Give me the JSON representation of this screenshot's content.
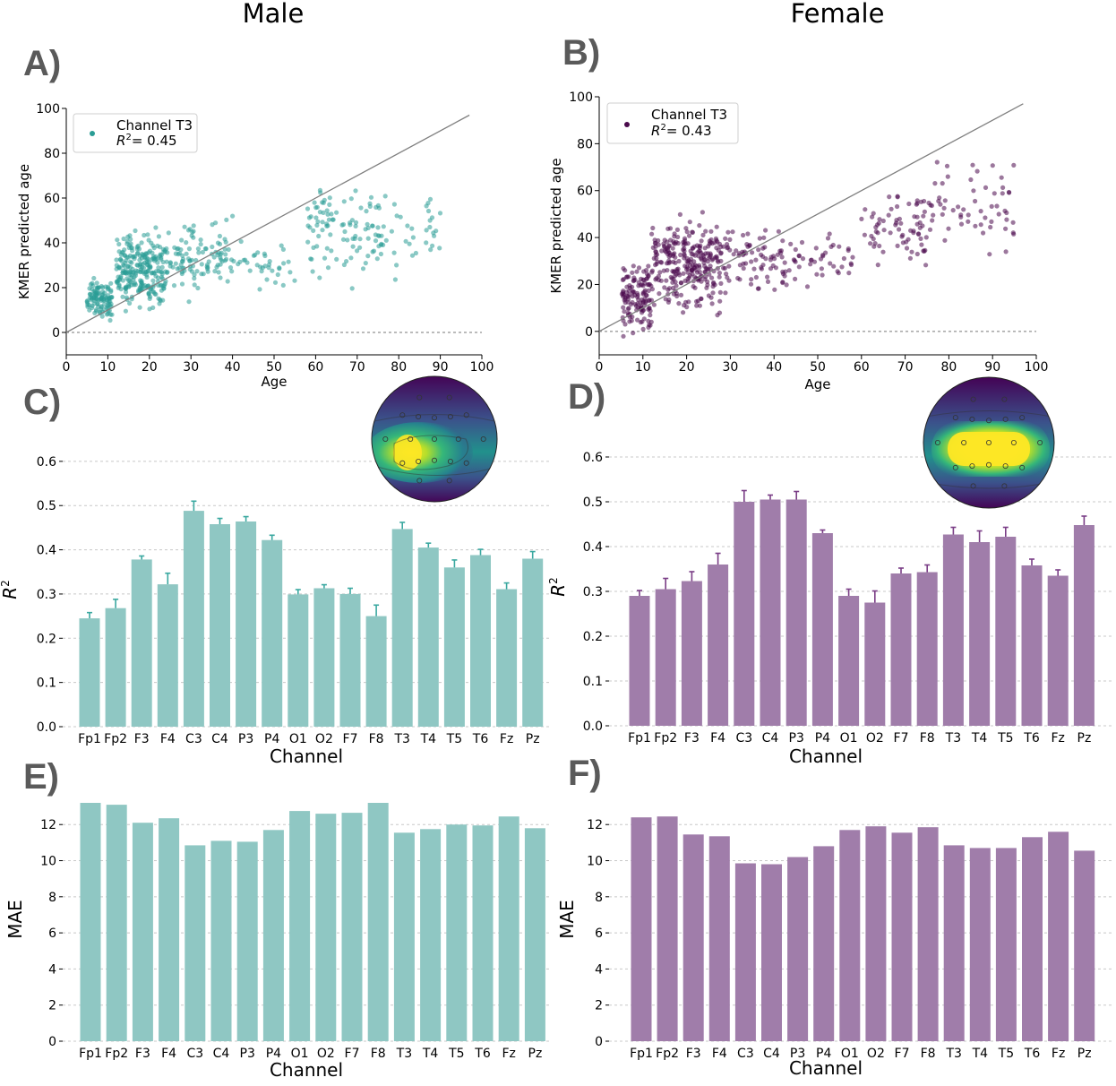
{
  "column_titles": [
    "Male",
    "Female"
  ],
  "colors": {
    "male": "#2a9d95",
    "male_bar": "#8fc7c3",
    "male_err": "#3aa8a0",
    "female": "#4a0a4c",
    "female_bar": "#a07daa",
    "female_err": "#7a3d86",
    "identity": "#808080"
  },
  "chart_data": [
    {
      "panel": "A)",
      "type": "scatter",
      "color": "male",
      "xlabel": "Age",
      "ylabel": "KMER predicted age",
      "xlim": [
        0,
        100
      ],
      "ylim": [
        -10,
        100
      ],
      "xticks": [
        0,
        10,
        20,
        30,
        40,
        50,
        60,
        70,
        80,
        90,
        100
      ],
      "yticks": [
        0,
        20,
        40,
        60,
        80,
        100
      ],
      "identity_line": [
        [
          0,
          0
        ],
        [
          97,
          97
        ]
      ],
      "legend": {
        "name": "Channel T3",
        "r2_prefix": "R",
        "r2_sup": "2",
        "r2_value": "= 0.45",
        "placement": "upper-left"
      },
      "clusters": [
        {
          "x": [
            5,
            11
          ],
          "y": [
            2,
            28
          ],
          "n": 110
        },
        {
          "x": [
            12,
            24
          ],
          "y": [
            5,
            50
          ],
          "n": 260
        },
        {
          "x": [
            24,
            40
          ],
          "y": [
            12,
            55
          ],
          "n": 110
        },
        {
          "x": [
            40,
            55
          ],
          "y": [
            15,
            45
          ],
          "n": 35
        },
        {
          "x": [
            58,
            73
          ],
          "y": [
            15,
            75
          ],
          "n": 80
        },
        {
          "x": [
            73,
            90
          ],
          "y": [
            20,
            70
          ],
          "n": 55
        }
      ]
    },
    {
      "panel": "B)",
      "type": "scatter",
      "color": "female",
      "xlabel": "Age",
      "ylabel": "KMER predicted age",
      "xlim": [
        0,
        100
      ],
      "ylim": [
        -10,
        100
      ],
      "xticks": [
        0,
        10,
        20,
        30,
        40,
        50,
        60,
        70,
        80,
        90,
        100
      ],
      "yticks": [
        0,
        20,
        40,
        60,
        80,
        100
      ],
      "identity_line": [
        [
          0,
          0
        ],
        [
          97,
          97
        ]
      ],
      "legend": {
        "name": "Channel T3",
        "r2_prefix": "R",
        "r2_sup": "2",
        "r2_value": "= 0.43",
        "placement": "upper-left"
      },
      "clusters": [
        {
          "x": [
            5,
            12
          ],
          "y": [
            -5,
            35
          ],
          "n": 130
        },
        {
          "x": [
            12,
            28
          ],
          "y": [
            2,
            55
          ],
          "n": 280
        },
        {
          "x": [
            28,
            45
          ],
          "y": [
            10,
            50
          ],
          "n": 90
        },
        {
          "x": [
            45,
            60
          ],
          "y": [
            15,
            45
          ],
          "n": 35
        },
        {
          "x": [
            60,
            75
          ],
          "y": [
            20,
            70
          ],
          "n": 70
        },
        {
          "x": [
            75,
            95
          ],
          "y": [
            25,
            80
          ],
          "n": 60
        }
      ]
    },
    {
      "panel": "C)",
      "type": "bar",
      "color": "male_bar",
      "err_color": "male_err",
      "xlabel": "Channel",
      "ylabel_prefix": "R",
      "ylabel_sup": "2",
      "ylim": [
        0,
        0.62
      ],
      "yticks": [
        "0.0",
        "0.1",
        "0.2",
        "0.3",
        "0.4",
        "0.5",
        "0.6"
      ],
      "categories": [
        "Fp1",
        "Fp2",
        "F3",
        "F4",
        "C3",
        "C4",
        "P3",
        "P4",
        "O1",
        "O2",
        "F7",
        "F8",
        "T3",
        "T4",
        "T5",
        "T6",
        "Fz",
        "Pz"
      ],
      "values": [
        0.245,
        0.268,
        0.378,
        0.322,
        0.488,
        0.458,
        0.464,
        0.422,
        0.299,
        0.313,
        0.3,
        0.25,
        0.447,
        0.405,
        0.36,
        0.388,
        0.311,
        0.38
      ],
      "errors": [
        0.013,
        0.02,
        0.008,
        0.025,
        0.022,
        0.013,
        0.011,
        0.011,
        0.011,
        0.008,
        0.013,
        0.025,
        0.015,
        0.01,
        0.017,
        0.013,
        0.014,
        0.016
      ],
      "topomap": "male"
    },
    {
      "panel": "D)",
      "type": "bar",
      "color": "female_bar",
      "err_color": "female_err",
      "xlabel": "Channel",
      "ylabel_prefix": "R",
      "ylabel_sup": "2",
      "ylim": [
        0,
        0.62
      ],
      "yticks": [
        "0.0",
        "0.1",
        "0.2",
        "0.3",
        "0.4",
        "0.5",
        "0.6"
      ],
      "categories": [
        "Fp1",
        "Fp2",
        "F3",
        "F4",
        "C3",
        "C4",
        "P3",
        "P4",
        "O1",
        "O2",
        "F7",
        "F8",
        "T3",
        "T4",
        "T5",
        "T6",
        "Fz",
        "Pz"
      ],
      "values": [
        0.29,
        0.305,
        0.323,
        0.36,
        0.5,
        0.505,
        0.505,
        0.43,
        0.29,
        0.275,
        0.34,
        0.343,
        0.427,
        0.41,
        0.422,
        0.358,
        0.335,
        0.448
      ],
      "errors": [
        0.012,
        0.024,
        0.021,
        0.025,
        0.025,
        0.01,
        0.018,
        0.007,
        0.015,
        0.026,
        0.012,
        0.016,
        0.016,
        0.025,
        0.021,
        0.014,
        0.013,
        0.02
      ],
      "topomap": "female"
    },
    {
      "panel": "E)",
      "type": "bar",
      "color": "male_bar",
      "xlabel": "Channel",
      "ylabel": "MAE",
      "ylim": [
        0,
        13.5
      ],
      "yticks": [
        "0",
        "2",
        "4",
        "6",
        "8",
        "10",
        "12"
      ],
      "categories": [
        "Fp1",
        "Fp2",
        "F3",
        "F4",
        "C3",
        "C4",
        "P3",
        "P4",
        "O1",
        "O2",
        "F7",
        "F8",
        "T3",
        "T4",
        "T5",
        "T6",
        "Fz",
        "Pz"
      ],
      "values": [
        13.2,
        13.1,
        12.1,
        12.35,
        10.85,
        11.1,
        11.05,
        11.7,
        12.75,
        12.6,
        12.65,
        13.2,
        11.55,
        11.75,
        12.0,
        11.95,
        12.45,
        11.8
      ]
    },
    {
      "panel": "F)",
      "type": "bar",
      "color": "female_bar",
      "xlabel": "Channel",
      "ylabel": "MAE",
      "ylim": [
        0,
        13.5
      ],
      "yticks": [
        "0",
        "2",
        "4",
        "6",
        "8",
        "10",
        "12"
      ],
      "categories": [
        "Fp1",
        "Fp2",
        "F3",
        "F4",
        "C3",
        "C4",
        "P3",
        "P4",
        "O1",
        "O2",
        "F7",
        "F8",
        "T3",
        "T4",
        "T5",
        "T6",
        "Fz",
        "Pz"
      ],
      "values": [
        12.4,
        12.45,
        11.45,
        11.35,
        9.85,
        9.8,
        10.2,
        10.8,
        11.7,
        11.9,
        11.55,
        11.85,
        10.85,
        10.7,
        10.7,
        11.3,
        11.6,
        10.55
      ]
    }
  ]
}
